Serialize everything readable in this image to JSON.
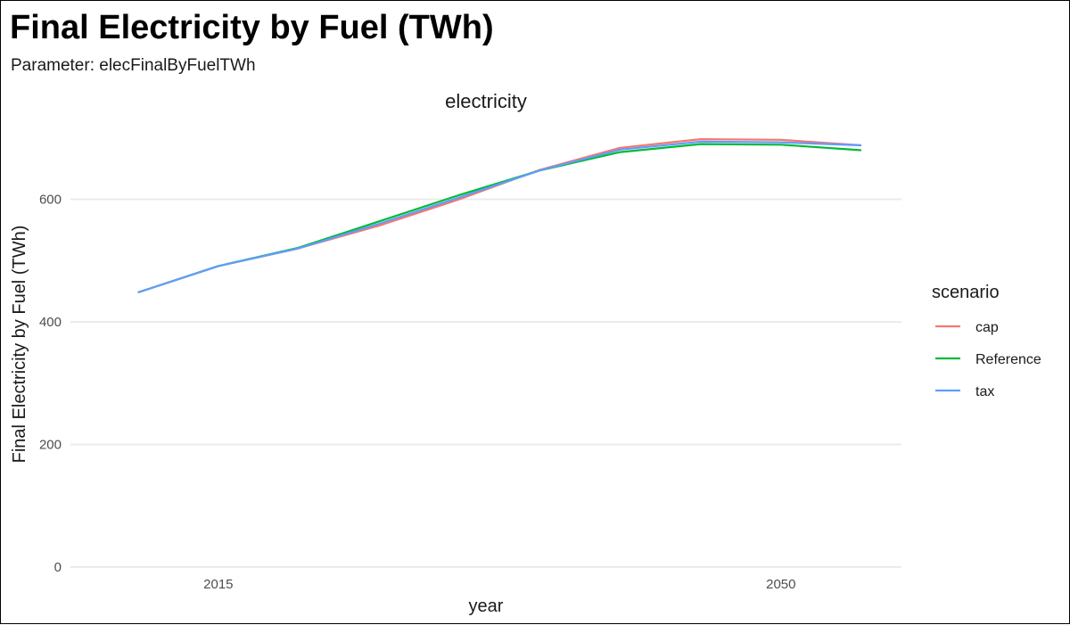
{
  "chart_data": {
    "type": "line",
    "title": "Final Electricity by Fuel (TWh)",
    "subtitle": "Parameter: elecFinalByFuelTWh",
    "facet": "electricity",
    "xlabel": "year",
    "ylabel": "Final Electricity by Fuel (TWh)",
    "x": [
      2010,
      2015,
      2020,
      2025,
      2030,
      2035,
      2040,
      2045,
      2050,
      2055
    ],
    "x_ticks": [
      2015,
      2050
    ],
    "y_ticks": [
      0,
      200,
      400,
      600
    ],
    "xlim": [
      2005.8,
      2057.5
    ],
    "ylim": [
      0,
      720
    ],
    "grid": "horizontal major",
    "legend_title": "scenario",
    "legend_position": "right",
    "series": [
      {
        "name": "cap",
        "color": "#F8766D",
        "values": [
          448,
          491,
          520,
          557,
          600,
          648,
          684,
          698,
          697,
          688
        ]
      },
      {
        "name": "Reference",
        "color": "#00BA38",
        "values": [
          448,
          491,
          521,
          564,
          607,
          647,
          677,
          690,
          689,
          680
        ]
      },
      {
        "name": "tax",
        "color": "#619CFF",
        "values": [
          448,
          491,
          520,
          560,
          603,
          647,
          681,
          694,
          693,
          688
        ]
      }
    ]
  }
}
